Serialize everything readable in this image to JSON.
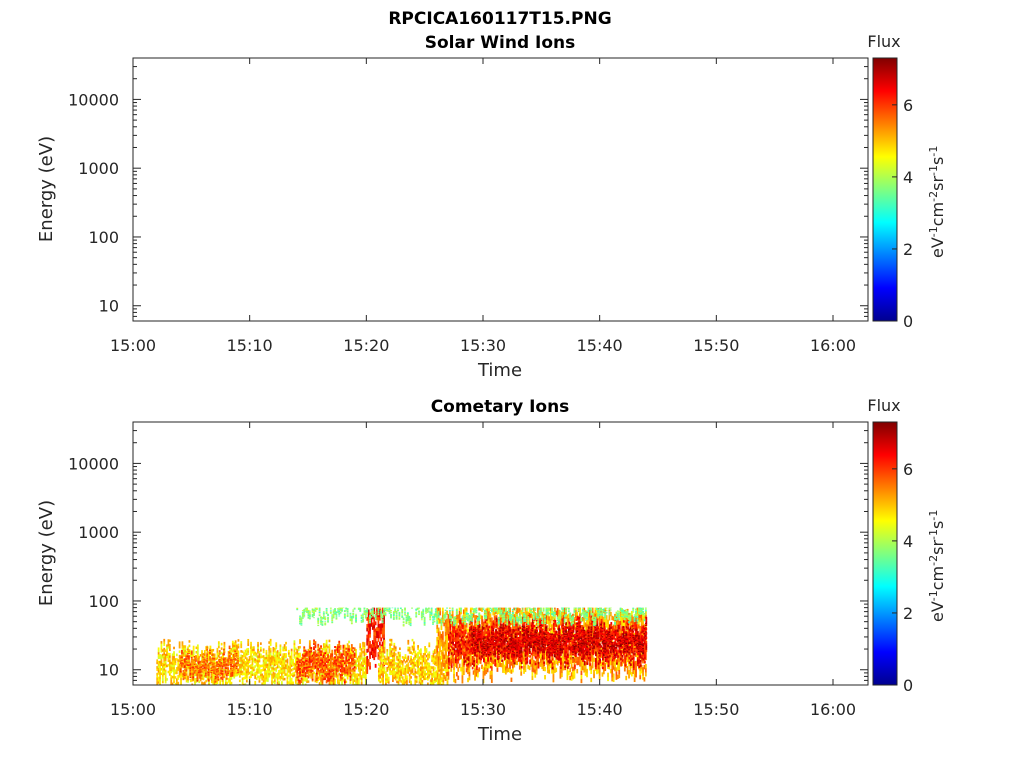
{
  "figure_title": "RPCICA160117T15.PNG",
  "chart_data": [
    {
      "type": "heatmap",
      "title": "Solar Wind Ions",
      "xlabel": "Time",
      "ylabel": "Energy (eV)",
      "x_ticks": [
        "15:00",
        "15:10",
        "15:20",
        "15:30",
        "15:40",
        "15:50",
        "16:00"
      ],
      "xlim": [
        "15:00",
        "16:03"
      ],
      "y_scale": "log",
      "y_ticks": [
        "10",
        "100",
        "1000",
        "10000"
      ],
      "ylim": [
        6,
        40000
      ],
      "colorbar": {
        "label": "Flux",
        "unit_label": "eV-1cm-2sr-1s-1",
        "ticks": [
          "0",
          "2",
          "4",
          "6"
        ],
        "range": [
          0,
          7.3
        ],
        "colormap": "jet"
      },
      "data_regions": []
    },
    {
      "type": "heatmap",
      "title": "Cometary Ions",
      "xlabel": "Time",
      "ylabel": "Energy (eV)",
      "x_ticks": [
        "15:00",
        "15:10",
        "15:20",
        "15:30",
        "15:40",
        "15:50",
        "16:00"
      ],
      "xlim": [
        "15:00",
        "16:03"
      ],
      "y_scale": "log",
      "y_ticks": [
        "10",
        "100",
        "1000",
        "10000"
      ],
      "ylim": [
        6,
        40000
      ],
      "colorbar": {
        "label": "Flux",
        "unit_label": "eV-1cm-2sr-1s-1",
        "ticks": [
          "0",
          "2",
          "4",
          "6"
        ],
        "range": [
          0,
          7.3
        ],
        "colormap": "jet"
      },
      "data_regions": [
        {
          "t_start": "15:02",
          "t_end": "15:20",
          "e_low": 6,
          "e_high": 20,
          "flux": 4.8
        },
        {
          "t_start": "15:04",
          "t_end": "15:09",
          "e_low": 9,
          "e_high": 16,
          "flux": 5.6
        },
        {
          "t_start": "15:14",
          "t_end": "15:19",
          "e_low": 8,
          "e_high": 20,
          "flux": 5.8
        },
        {
          "t_start": "15:20",
          "t_end": "15:21.5",
          "e_low": 12,
          "e_high": 80,
          "flux": 6.2
        },
        {
          "t_start": "15:21",
          "t_end": "15:27",
          "e_low": 6,
          "e_high": 20,
          "flux": 4.9
        },
        {
          "t_start": "15:26",
          "t_end": "15:44",
          "e_low": 9,
          "e_high": 80,
          "flux": 5.2
        },
        {
          "t_start": "15:27",
          "t_end": "15:44",
          "e_low": 14,
          "e_high": 45,
          "flux": 6.3
        },
        {
          "t_start": "15:29",
          "t_end": "15:44",
          "e_low": 20,
          "e_high": 35,
          "flux": 6.7
        },
        {
          "t_start": "15:14",
          "t_end": "15:44",
          "e_low": 60,
          "e_high": 80,
          "flux": 3.7
        }
      ]
    }
  ]
}
